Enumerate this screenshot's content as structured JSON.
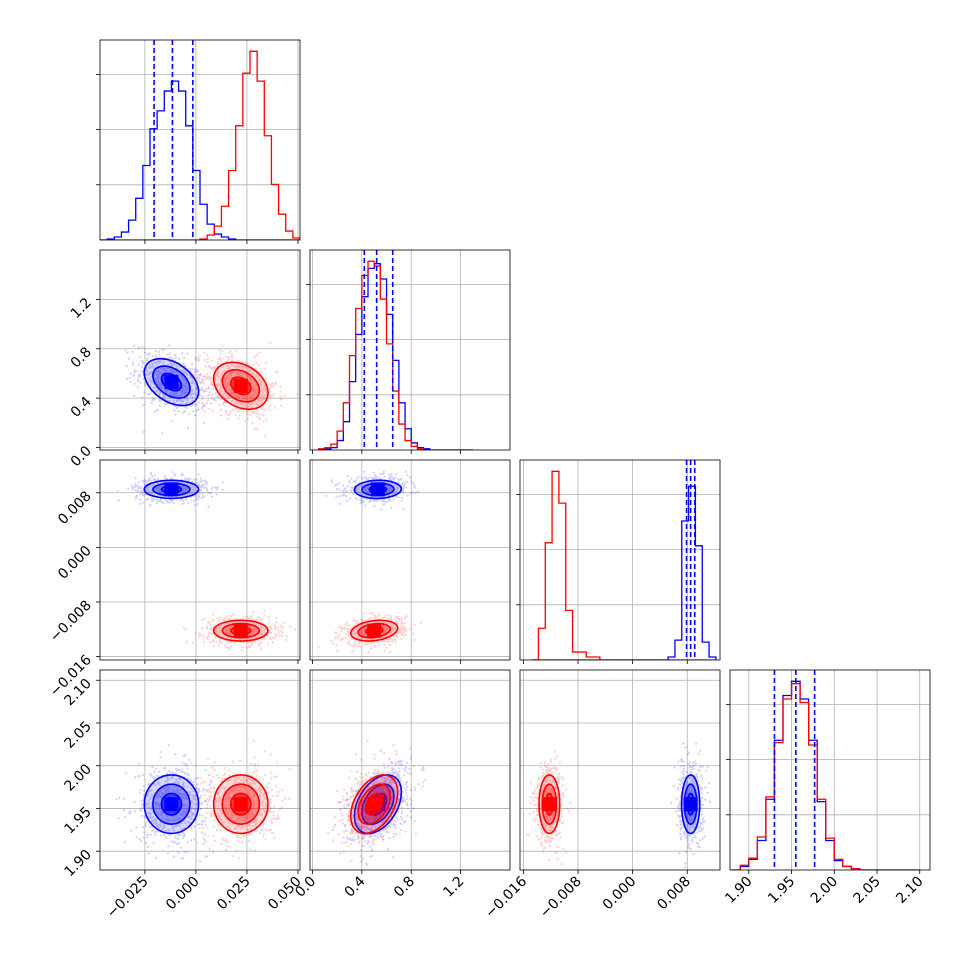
{
  "chart_data": {
    "type": "corner",
    "grid": true,
    "colors": {
      "series_a": "#0000ff",
      "series_b": "#ff0000",
      "grid": "#b0b0b0",
      "axis": "#000000"
    },
    "series": [
      {
        "color": "#0000ff",
        "params": [
          {
            "mean": -0.012,
            "sd": 0.007
          },
          {
            "mean": 0.53,
            "sd": 0.1
          },
          {
            "mean": 0.0085,
            "sd": 0.0007
          },
          {
            "mean": 1.955,
            "sd": 0.018
          }
        ],
        "quantiles": [
          [
            -0.0205,
            -0.0115,
            -0.0015
          ],
          [
            0.42,
            0.52,
            0.65
          ],
          [
            0.0079,
            0.0085,
            0.0091
          ],
          [
            1.93,
            1.955,
            1.977
          ]
        ]
      },
      {
        "color": "#ff0000",
        "params": [
          {
            "mean": 0.022,
            "sd": 0.007
          },
          {
            "mean": 0.5,
            "sd": 0.1
          },
          {
            "mean": -0.0122,
            "sd": 0.0008
          },
          {
            "mean": 1.955,
            "sd": 0.018
          }
        ]
      }
    ],
    "histograms": [
      {
        "edges": [
          -0.047,
          -0.0435,
          -0.04,
          -0.0365,
          -0.033,
          -0.0295,
          -0.026,
          -0.0225,
          -0.019,
          -0.0155,
          -0.012,
          -0.0085,
          -0.005,
          -0.0015,
          0.002,
          0.0055,
          0.009,
          0.0125,
          0.016,
          0.0195,
          0.023,
          0.0265,
          0.03,
          0.0335,
          0.037,
          0.0405,
          0.044,
          0.0475,
          0.051
        ],
        "counts": [
          [
            0,
            1,
            3,
            8,
            20,
            42,
            75,
            112,
            130,
            150,
            160,
            150,
            115,
            70,
            36,
            16,
            6,
            3,
            1,
            0,
            0,
            0,
            0,
            0,
            0,
            0,
            0,
            0
          ],
          [
            0,
            0,
            0,
            0,
            0,
            0,
            0,
            0,
            0,
            0,
            0,
            0,
            0,
            0,
            1,
            5,
            14,
            34,
            70,
            115,
            168,
            190,
            160,
            105,
            56,
            26,
            9,
            2
          ]
        ]
      },
      {
        "edges": [
          0.05,
          0.1,
          0.15,
          0.2,
          0.25,
          0.3,
          0.35,
          0.4,
          0.45,
          0.5,
          0.55,
          0.6,
          0.65,
          0.7,
          0.75,
          0.8,
          0.85,
          0.9,
          0.95,
          1.0,
          1.1,
          1.3
        ],
        "counts": [
          [
            0,
            1,
            2,
            8,
            24,
            58,
            98,
            130,
            154,
            158,
            145,
            115,
            76,
            40,
            18,
            6,
            2,
            1,
            0,
            0,
            0
          ],
          [
            1,
            2,
            5,
            16,
            40,
            80,
            120,
            148,
            160,
            156,
            128,
            90,
            50,
            22,
            8,
            3,
            1,
            0,
            0,
            0,
            0
          ]
        ]
      },
      {
        "edges": [
          -0.0148,
          -0.0138,
          -0.0128,
          -0.0118,
          -0.0108,
          -0.0098,
          -0.0088,
          -0.0068,
          -0.0048,
          -0.0028,
          -0.0008,
          0.0012,
          0.0032,
          0.0052,
          0.0062,
          0.0072,
          0.0082,
          0.0092,
          0.0102,
          0.0112,
          0.0122
        ],
        "counts": [
          [
            0,
            0,
            0,
            0,
            0,
            0,
            0,
            0,
            0,
            0,
            0,
            0,
            0,
            3,
            20,
            140,
            175,
            115,
            18,
            3
          ],
          [
            0,
            32,
            118,
            190,
            158,
            50,
            8,
            3,
            0,
            0,
            0,
            0,
            0,
            0,
            0,
            0,
            0,
            0,
            0,
            0
          ]
        ]
      },
      {
        "edges": [
          1.88,
          1.89,
          1.9,
          1.91,
          1.92,
          1.93,
          1.94,
          1.95,
          1.96,
          1.97,
          1.98,
          1.99,
          2.0,
          2.01,
          2.02,
          2.03,
          2.04,
          2.05,
          2.06,
          2.07,
          2.08,
          2.09,
          2.1
        ],
        "counts": [
          [
            0,
            3,
            9,
            25,
            60,
            110,
            148,
            160,
            145,
            110,
            58,
            25,
            8,
            3,
            1,
            0,
            0,
            0,
            0,
            0,
            0,
            0
          ],
          [
            0,
            4,
            10,
            28,
            62,
            108,
            145,
            158,
            142,
            106,
            60,
            27,
            9,
            3,
            1,
            0,
            0,
            0,
            0,
            0,
            0,
            0
          ]
        ]
      }
    ],
    "axes": [
      {
        "range": [
          -0.047,
          0.051
        ],
        "ticks": [
          -0.025,
          0.0,
          0.025,
          0.05
        ],
        "tick_labels": [
          "−0.025",
          "0.000",
          "0.025",
          "0.050"
        ]
      },
      {
        "range": [
          -0.02,
          1.6
        ],
        "ticks": [
          0.0,
          0.4,
          0.8,
          1.2
        ],
        "tick_labels": [
          "0.0",
          "0.4",
          "0.8",
          "1.2"
        ]
      },
      {
        "range": [
          -0.0165,
          0.0128
        ],
        "ticks": [
          -0.016,
          -0.008,
          0.0,
          0.008
        ],
        "tick_labels": [
          "−0.016",
          "−0.008",
          "0.000",
          "0.008"
        ]
      },
      {
        "range": [
          1.878,
          2.112
        ],
        "ticks": [
          1.9,
          1.95,
          2.0,
          2.05,
          2.1
        ],
        "tick_labels": [
          "1.90",
          "1.95",
          "2.00",
          "2.05",
          "2.10"
        ]
      }
    ]
  }
}
